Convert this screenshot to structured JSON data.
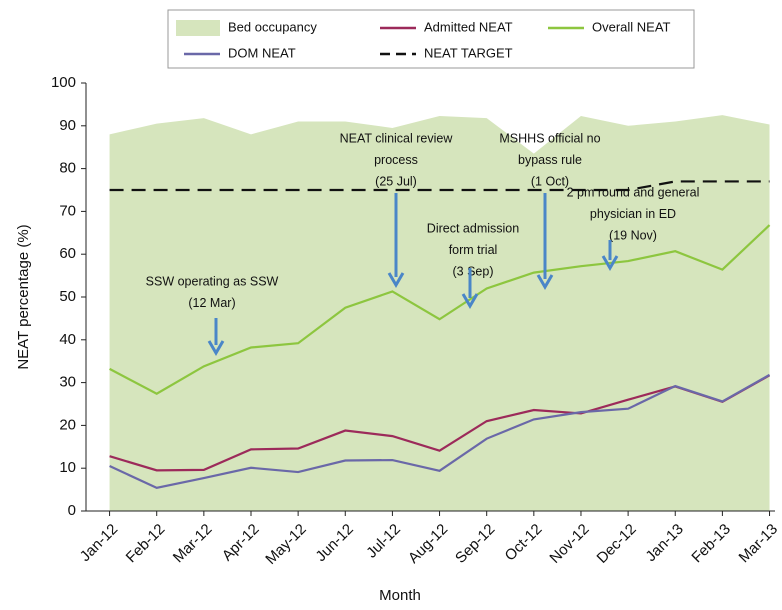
{
  "chart_data": {
    "type": "line",
    "x_label": "Month",
    "y_label": "NEAT percentage (%)",
    "categories": [
      "Jan-12",
      "Feb-12",
      "Mar-12",
      "Apr-12",
      "May-12",
      "Jun-12",
      "Jul-12",
      "Aug-12",
      "Sep-12",
      "Oct-12",
      "Nov-12",
      "Dec-12",
      "Jan-13",
      "Feb-13",
      "Mar-13"
    ],
    "ylim": [
      0,
      100
    ],
    "yticks": [
      0,
      10,
      20,
      30,
      40,
      50,
      60,
      70,
      80,
      90,
      100
    ],
    "series": [
      {
        "name": "Bed occupancy",
        "style": "area",
        "color": "#d6e5bd",
        "values": [
          88,
          90.5,
          91.8,
          88,
          91,
          91,
          89.5,
          92.3,
          91.8,
          83.5,
          92.3,
          90,
          91,
          92.5,
          90.3
        ]
      },
      {
        "name": "Admitted NEAT",
        "style": "line",
        "color": "#9c2a5a",
        "values": [
          12.8,
          9.5,
          9.6,
          14.4,
          14.6,
          18.8,
          17.5,
          14.1,
          21,
          23.6,
          22.8,
          26,
          29.1,
          25.5,
          31.7
        ]
      },
      {
        "name": "Overall NEAT",
        "style": "line",
        "color": "#8dc63f",
        "values": [
          33.2,
          27.4,
          33.8,
          38.2,
          39.2,
          47.5,
          51.3,
          44.8,
          52,
          55.7,
          57.2,
          58.4,
          60.7,
          56.4,
          66.8
        ]
      },
      {
        "name": "DOM NEAT",
        "style": "line",
        "color": "#6a68a8",
        "values": [
          10.5,
          5.4,
          7.7,
          10.1,
          9.1,
          11.8,
          11.9,
          9.4,
          16.9,
          21.4,
          23.1,
          23.9,
          29.2,
          25.6,
          31.8
        ]
      },
      {
        "name": "NEAT TARGET",
        "style": "dashed",
        "color": "#111111",
        "values": [
          75,
          75,
          75,
          75,
          75,
          75,
          75,
          75,
          75,
          75,
          75,
          75,
          77,
          77,
          77
        ]
      }
    ],
    "annotations": [
      {
        "lines": [
          "SSW operating as SSW",
          "(12 Mar)"
        ]
      },
      {
        "lines": [
          "NEAT clinical review",
          "process",
          "(25 Jul)"
        ]
      },
      {
        "lines": [
          "Direct admission",
          "form trial",
          "(3 Sep)"
        ]
      },
      {
        "lines": [
          "MSHHS official no",
          "bypass rule",
          "(1 Oct)"
        ]
      },
      {
        "lines": [
          "2 pm round and general",
          "physician in ED",
          "(19 Nov)"
        ]
      }
    ],
    "annotation_color": "#4a86c8"
  }
}
